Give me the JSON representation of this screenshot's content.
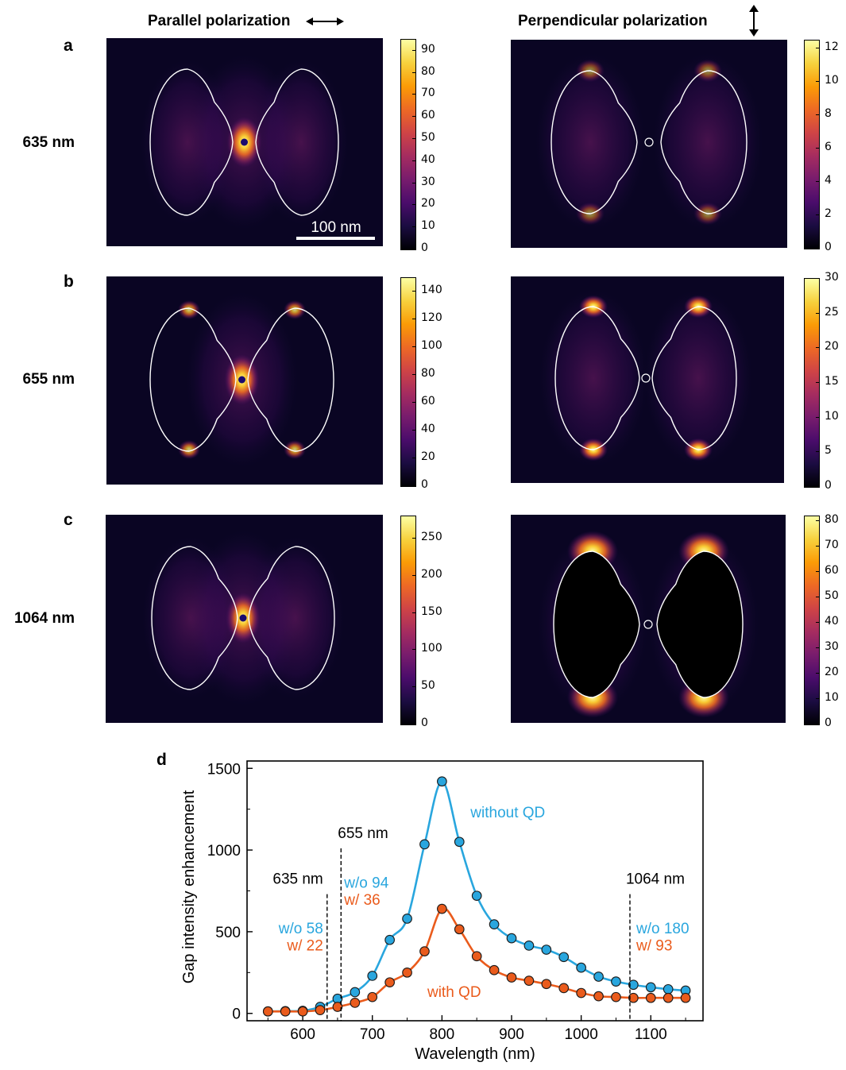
{
  "headers": {
    "parallel": "Parallel polarization",
    "perpendicular": "Perpendicular polarization",
    "parallel_icon": "left-right-arrow-icon",
    "perpendicular_icon": "up-down-arrow-icon"
  },
  "panels": [
    {
      "letter": "a",
      "wavelength": "635 nm",
      "parallel": {
        "ticks": [
          "0",
          "10",
          "20",
          "30",
          "40",
          "50",
          "60",
          "70",
          "80",
          "90"
        ],
        "max": 95,
        "scalebar": "100 nm"
      },
      "perpendicular": {
        "ticks": [
          "0",
          "2",
          "4",
          "6",
          "8",
          "10",
          "12"
        ],
        "max": 12.5
      }
    },
    {
      "letter": "b",
      "wavelength": "655 nm",
      "parallel": {
        "ticks": [
          "0",
          "20",
          "40",
          "60",
          "80",
          "100",
          "120",
          "140"
        ],
        "max": 150
      },
      "perpendicular": {
        "ticks": [
          "0",
          "5",
          "10",
          "15",
          "20",
          "25",
          "30"
        ],
        "max": 30
      }
    },
    {
      "letter": "c",
      "wavelength": "1064 nm",
      "parallel": {
        "ticks": [
          "0",
          "50",
          "100",
          "150",
          "200",
          "250"
        ],
        "max": 280
      },
      "perpendicular": {
        "ticks": [
          "0",
          "10",
          "20",
          "30",
          "40",
          "50",
          "60",
          "70",
          "80"
        ],
        "max": 82
      }
    }
  ],
  "colormap": [
    "#000004",
    "#1b0c41",
    "#4a0c6b",
    "#781c6d",
    "#a52c60",
    "#cf4446",
    "#ed6925",
    "#fb9b06",
    "#f7d13d",
    "#fcffa4"
  ],
  "chart_data": {
    "type": "line",
    "panel_letter": "d",
    "xlabel": "Wavelength (nm)",
    "ylabel": "Gap intensity enhancement",
    "xlim": [
      520,
      1175
    ],
    "ylim": [
      -45,
      1545
    ],
    "xticks": [
      600,
      700,
      800,
      900,
      1000,
      1100
    ],
    "yticks": [
      0,
      500,
      1000,
      1500
    ],
    "series": [
      {
        "name": "without QD",
        "color": "#29a6de",
        "x": [
          550,
          575,
          600,
          625,
          650,
          675,
          700,
          725,
          750,
          775,
          800,
          825,
          850,
          875,
          900,
          925,
          950,
          975,
          1000,
          1025,
          1050,
          1075,
          1100,
          1125,
          1150
        ],
        "y": [
          12,
          14,
          16,
          40,
          90,
          130,
          230,
          450,
          580,
          1035,
          1420,
          1050,
          720,
          545,
          460,
          415,
          390,
          345,
          280,
          225,
          195,
          175,
          160,
          148,
          140
        ]
      },
      {
        "name": "with QD",
        "color": "#ea5b1c",
        "x": [
          550,
          575,
          600,
          625,
          650,
          675,
          700,
          725,
          750,
          775,
          800,
          825,
          850,
          875,
          900,
          925,
          950,
          975,
          1000,
          1025,
          1050,
          1075,
          1100,
          1125,
          1150
        ],
        "y": [
          12,
          12,
          12,
          20,
          40,
          65,
          100,
          190,
          250,
          380,
          640,
          515,
          350,
          265,
          220,
          200,
          180,
          155,
          125,
          105,
          100,
          95,
          95,
          95,
          95
        ]
      }
    ],
    "markers": [
      {
        "x": 635,
        "label": "635 nm",
        "without": "w/o 58",
        "with": "w/ 22"
      },
      {
        "x": 655,
        "label": "655 nm",
        "without": "w/o 94",
        "with": "w/ 36"
      },
      {
        "x": 1070,
        "label": "1064 nm",
        "without": "w/o 180",
        "with": "w/ 93"
      }
    ]
  }
}
